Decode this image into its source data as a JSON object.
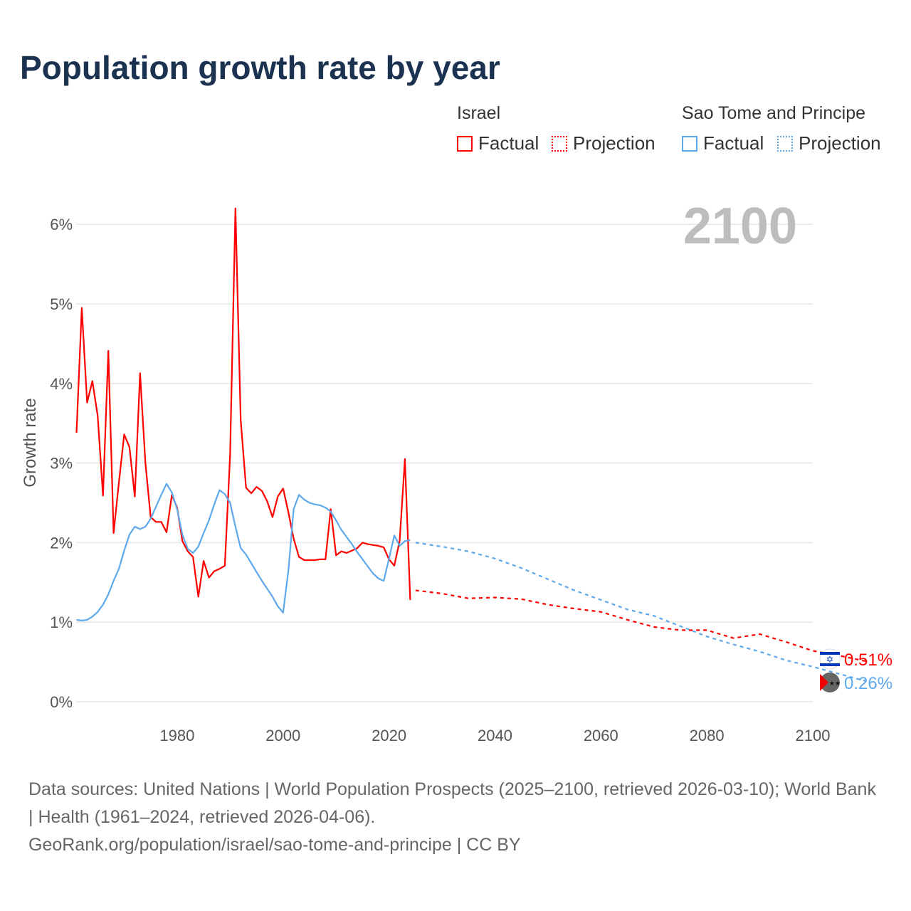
{
  "title": "Population growth rate by year",
  "legend": {
    "groups": [
      {
        "name": "Israel",
        "factual": "Factual",
        "projection": "Projection",
        "color": "#ff0000"
      },
      {
        "name": "Sao Tome and Principe",
        "factual": "Factual",
        "projection": "Projection",
        "color": "#5ea8ec"
      }
    ]
  },
  "footer": {
    "line1": "Data sources: United Nations | World Population Prospects (2025–2100, retrieved 2026-03-10); World Bank | Health (1961–2024, retrieved 2026-04-06).",
    "line2": "GeoRank.org/population/israel/sao-tome-and-principe | CC BY"
  },
  "chart_data": {
    "type": "line",
    "title": "Population growth rate by year",
    "ylabel": "Growth rate",
    "xlabel": "",
    "xlim": [
      1961,
      2100
    ],
    "ylim": [
      0,
      6.2
    ],
    "xticks": [
      1980,
      2000,
      2020,
      2040,
      2060,
      2080,
      2100
    ],
    "yticks": [
      {
        "v": 0,
        "label": "0%"
      },
      {
        "v": 1,
        "label": "1%"
      },
      {
        "v": 2,
        "label": "2%"
      },
      {
        "v": 3,
        "label": "3%"
      },
      {
        "v": 4,
        "label": "4%"
      },
      {
        "v": 5,
        "label": "5%"
      },
      {
        "v": 6,
        "label": "6%"
      }
    ],
    "year_label": "2100",
    "series": [
      {
        "name": "Israel",
        "kind": "Factual",
        "color": "#ff0000",
        "x0": 1961,
        "values": [
          3.38,
          4.95,
          3.76,
          4.03,
          3.59,
          2.59,
          4.41,
          2.12,
          2.75,
          3.36,
          3.2,
          2.58,
          4.13,
          3.0,
          2.32,
          2.26,
          2.26,
          2.13,
          2.6,
          2.44,
          2.02,
          1.89,
          1.82,
          1.32,
          1.77,
          1.56,
          1.64,
          1.67,
          1.71,
          3.1,
          6.2,
          3.54,
          2.69,
          2.62,
          2.7,
          2.65,
          2.52,
          2.32,
          2.58,
          2.68,
          2.38,
          2.05,
          1.82,
          1.78,
          1.78,
          1.78,
          1.79,
          1.79,
          2.42,
          1.84,
          1.89,
          1.87,
          1.9,
          1.93,
          2.0,
          1.98,
          1.97,
          1.96,
          1.94,
          1.79,
          1.71,
          2.02,
          3.05,
          1.28
        ]
      },
      {
        "name": "Israel",
        "kind": "Projection",
        "color": "#ff0000",
        "x0": 2025,
        "step": 5,
        "values": [
          1.4,
          1.36,
          1.3,
          1.31,
          1.29,
          1.22,
          1.17,
          1.13,
          1.03,
          0.94,
          0.9,
          0.9,
          0.8,
          0.85,
          0.75,
          0.64,
          0.58,
          0.51
        ]
      },
      {
        "name": "Sao Tome and Principe",
        "kind": "Factual",
        "color": "#5ea8ec",
        "x0": 1961,
        "values": [
          1.03,
          1.02,
          1.03,
          1.07,
          1.13,
          1.22,
          1.35,
          1.52,
          1.67,
          1.9,
          2.1,
          2.2,
          2.17,
          2.2,
          2.3,
          2.45,
          2.6,
          2.74,
          2.63,
          2.42,
          2.1,
          1.92,
          1.87,
          1.95,
          2.12,
          2.28,
          2.48,
          2.66,
          2.61,
          2.5,
          2.2,
          1.93,
          1.85,
          1.74,
          1.63,
          1.52,
          1.42,
          1.32,
          1.2,
          1.12,
          1.65,
          2.42,
          2.6,
          2.54,
          2.5,
          2.48,
          2.47,
          2.44,
          2.39,
          2.28,
          2.16,
          2.07,
          1.98,
          1.88,
          1.79,
          1.7,
          1.61,
          1.55,
          1.52,
          1.8,
          2.09,
          1.96,
          2.02,
          2.03
        ]
      },
      {
        "name": "Sao Tome and Principe",
        "kind": "Projection",
        "color": "#5ea8ec",
        "x0": 2025,
        "step": 5,
        "values": [
          2.0,
          1.95,
          1.89,
          1.8,
          1.68,
          1.54,
          1.4,
          1.28,
          1.16,
          1.08,
          0.95,
          0.82,
          0.72,
          0.63,
          0.52,
          0.44,
          0.35,
          0.26
        ]
      }
    ],
    "end_labels": [
      {
        "country": "Israel",
        "value": "0.51%",
        "color": "#ff0000"
      },
      {
        "country": "Sao Tome and Principe",
        "value": "0.26%",
        "color": "#5ea8ec"
      }
    ]
  }
}
